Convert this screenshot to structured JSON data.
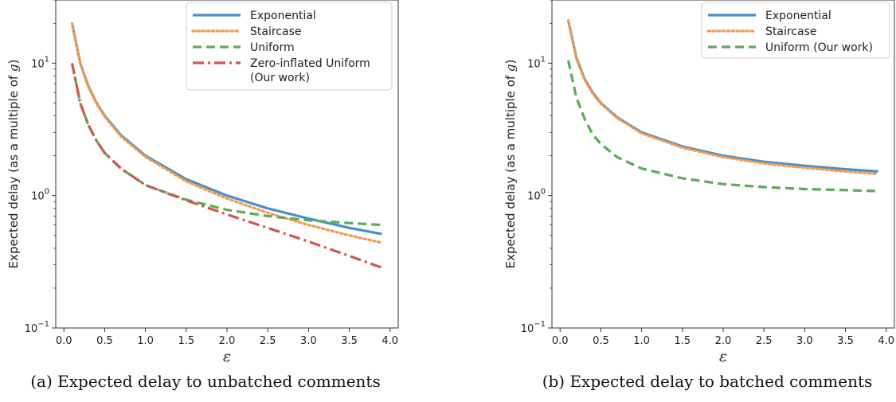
{
  "chart_data": [
    {
      "type": "line",
      "caption": "(a) Expected delay to unbatched comments",
      "xlabel": "ε",
      "ylabel": "Expected delay (as a multiple of g)",
      "ylabel_prefix": "Expected delay (as a multiple of ",
      "ylabel_var": "g",
      "ylabel_suffix": ")",
      "yscale": "log",
      "xlim": [
        -0.1,
        4.1
      ],
      "ylim": [
        0.1,
        30
      ],
      "xticks": [
        "0.0",
        "0.5",
        "1.0",
        "1.5",
        "2.0",
        "2.5",
        "3.0",
        "3.5",
        "4.0"
      ],
      "yticks": [
        {
          "base": "10",
          "exp": "−1",
          "value": 0.1
        },
        {
          "base": "10",
          "exp": "0",
          "value": 1
        },
        {
          "base": "10",
          "exp": "1",
          "value": 10
        }
      ],
      "grid": false,
      "legend_position": "top-right",
      "series": [
        {
          "name": "Exponential",
          "color": "#4a8fc7",
          "style": "solid",
          "x": [
            0.1,
            0.2,
            0.3,
            0.4,
            0.5,
            0.7,
            1.0,
            1.5,
            2.0,
            2.5,
            3.0,
            3.5,
            3.9
          ],
          "y": [
            20,
            10,
            6.7,
            5.0,
            4.0,
            2.86,
            2.0,
            1.33,
            1.0,
            0.8,
            0.67,
            0.57,
            0.513
          ]
        },
        {
          "name": "Staircase",
          "color": "#f59a4a",
          "style": "dotted",
          "x": [
            0.1,
            0.2,
            0.3,
            0.4,
            0.5,
            0.7,
            1.0,
            1.5,
            2.0,
            2.5,
            3.0,
            3.5,
            3.9
          ],
          "y": [
            20,
            10,
            6.6,
            4.95,
            3.95,
            2.8,
            1.96,
            1.28,
            0.95,
            0.74,
            0.6,
            0.5,
            0.44
          ]
        },
        {
          "name": "Uniform",
          "color": "#5aab5a",
          "style": "dashed",
          "x": [
            0.1,
            0.2,
            0.3,
            0.4,
            0.5,
            0.7,
            1.0,
            1.5,
            2.0,
            2.5,
            3.0,
            3.5,
            3.9
          ],
          "y": [
            10,
            5.0,
            3.4,
            2.6,
            2.1,
            1.6,
            1.2,
            0.93,
            0.78,
            0.7,
            0.65,
            0.62,
            0.6
          ]
        },
        {
          "name": "Zero-inflated Uniform\n(Our work)",
          "color": "#d9534f",
          "style": "dashdot",
          "x": [
            0.1,
            0.2,
            0.3,
            0.4,
            0.5,
            0.7,
            1.0,
            1.5,
            2.0,
            2.5,
            3.0,
            3.5,
            3.9
          ],
          "y": [
            10,
            5.0,
            3.4,
            2.6,
            2.1,
            1.6,
            1.2,
            0.92,
            0.72,
            0.57,
            0.45,
            0.35,
            0.285
          ]
        }
      ]
    },
    {
      "type": "line",
      "caption": "(b) Expected delay to batched comments",
      "xlabel": "ε",
      "ylabel": "Expected delay (as a multiple of g)",
      "ylabel_prefix": "Expected delay (as a multiple of ",
      "ylabel_var": "g",
      "ylabel_suffix": ")",
      "yscale": "log",
      "xlim": [
        -0.1,
        4.1
      ],
      "ylim": [
        0.1,
        30
      ],
      "xticks": [
        "0.0",
        "0.5",
        "1.0",
        "1.5",
        "2.0",
        "2.5",
        "3.0",
        "3.5",
        "4.0"
      ],
      "yticks": [
        {
          "base": "10",
          "exp": "−1",
          "value": 0.1
        },
        {
          "base": "10",
          "exp": "0",
          "value": 1
        },
        {
          "base": "10",
          "exp": "1",
          "value": 10
        }
      ],
      "grid": false,
      "legend_position": "top-right",
      "series": [
        {
          "name": "Exponential",
          "color": "#4a8fc7",
          "style": "solid",
          "x": [
            0.1,
            0.2,
            0.3,
            0.4,
            0.5,
            0.7,
            1.0,
            1.5,
            2.0,
            2.5,
            3.0,
            3.5,
            3.9
          ],
          "y": [
            21,
            11,
            7.6,
            6.0,
            5.0,
            3.9,
            3.0,
            2.35,
            2.0,
            1.8,
            1.68,
            1.58,
            1.52
          ]
        },
        {
          "name": "Staircase",
          "color": "#f59a4a",
          "style": "dotted",
          "x": [
            0.1,
            0.2,
            0.3,
            0.4,
            0.5,
            0.7,
            1.0,
            1.5,
            2.0,
            2.5,
            3.0,
            3.5,
            3.9
          ],
          "y": [
            21,
            10.8,
            7.5,
            5.9,
            4.95,
            3.85,
            2.95,
            2.3,
            1.95,
            1.75,
            1.62,
            1.52,
            1.45
          ]
        },
        {
          "name": "Uniform (Our work)",
          "color": "#5aab5a",
          "style": "dashed",
          "x": [
            0.1,
            0.2,
            0.3,
            0.4,
            0.5,
            0.7,
            1.0,
            1.5,
            2.0,
            2.5,
            3.0,
            3.5,
            3.9
          ],
          "y": [
            10.5,
            5.5,
            3.8,
            2.9,
            2.45,
            1.95,
            1.6,
            1.35,
            1.22,
            1.16,
            1.12,
            1.1,
            1.08
          ]
        }
      ]
    }
  ]
}
